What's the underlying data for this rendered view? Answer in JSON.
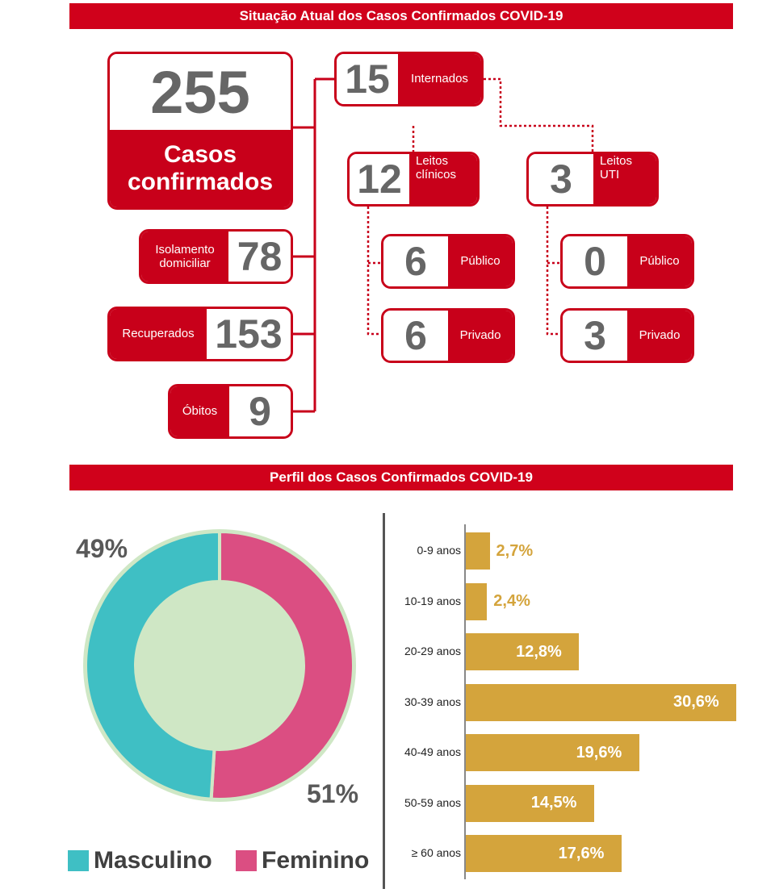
{
  "headers": {
    "situation": "Situação Atual dos Casos Confirmados COVID-19",
    "profile": "Perfil dos Casos Confirmados COVID-19"
  },
  "summary": {
    "total": {
      "value": "255",
      "label_line1": "Casos",
      "label_line2": "confirmados"
    },
    "isolamento": {
      "value": "78",
      "label_line1": "Isolamento",
      "label_line2": "domiciliar"
    },
    "recuperados": {
      "value": "153",
      "label": "Recuperados"
    },
    "obitos": {
      "value": "9",
      "label": "Óbitos"
    },
    "internados": {
      "value": "15",
      "label": "Internados"
    },
    "leitos_clinicos": {
      "value": "12",
      "label_line1": "Leitos",
      "label_line2": "clínicos",
      "publico": {
        "value": "6",
        "label": "Público"
      },
      "privado": {
        "value": "6",
        "label": "Privado"
      }
    },
    "leitos_uti": {
      "value": "3",
      "label_line1": "Leitos",
      "label_line2": "UTI",
      "publico": {
        "value": "0",
        "label": "Público"
      },
      "privado": {
        "value": "3",
        "label": "Privado"
      }
    }
  },
  "colors": {
    "red": "#c8001a",
    "masculino": "#3fbfc4",
    "feminino": "#db4e82",
    "bar": "#d4a43c",
    "donut_border": "#cfe7c5"
  },
  "chart_data": [
    {
      "type": "pie",
      "labels": [
        "Masculino",
        "Feminino"
      ],
      "values": [
        49,
        51
      ],
      "value_labels": [
        "49%",
        "51%"
      ],
      "donut": true,
      "legend_position": "bottom"
    },
    {
      "type": "bar",
      "orientation": "horizontal",
      "categories": [
        "0-9 anos",
        "10-19 anos",
        "20-29 anos",
        "30-39 anos",
        "40-49 anos",
        "50-59 anos",
        "≥ 60 anos"
      ],
      "values": [
        2.7,
        2.4,
        12.8,
        30.6,
        19.6,
        14.5,
        17.6
      ],
      "value_labels": [
        "2,7%",
        "2,4%",
        "12,8%",
        "30,6%",
        "19,6%",
        "14,5%",
        "17,6%"
      ],
      "xlim": [
        0,
        30.6
      ]
    }
  ]
}
